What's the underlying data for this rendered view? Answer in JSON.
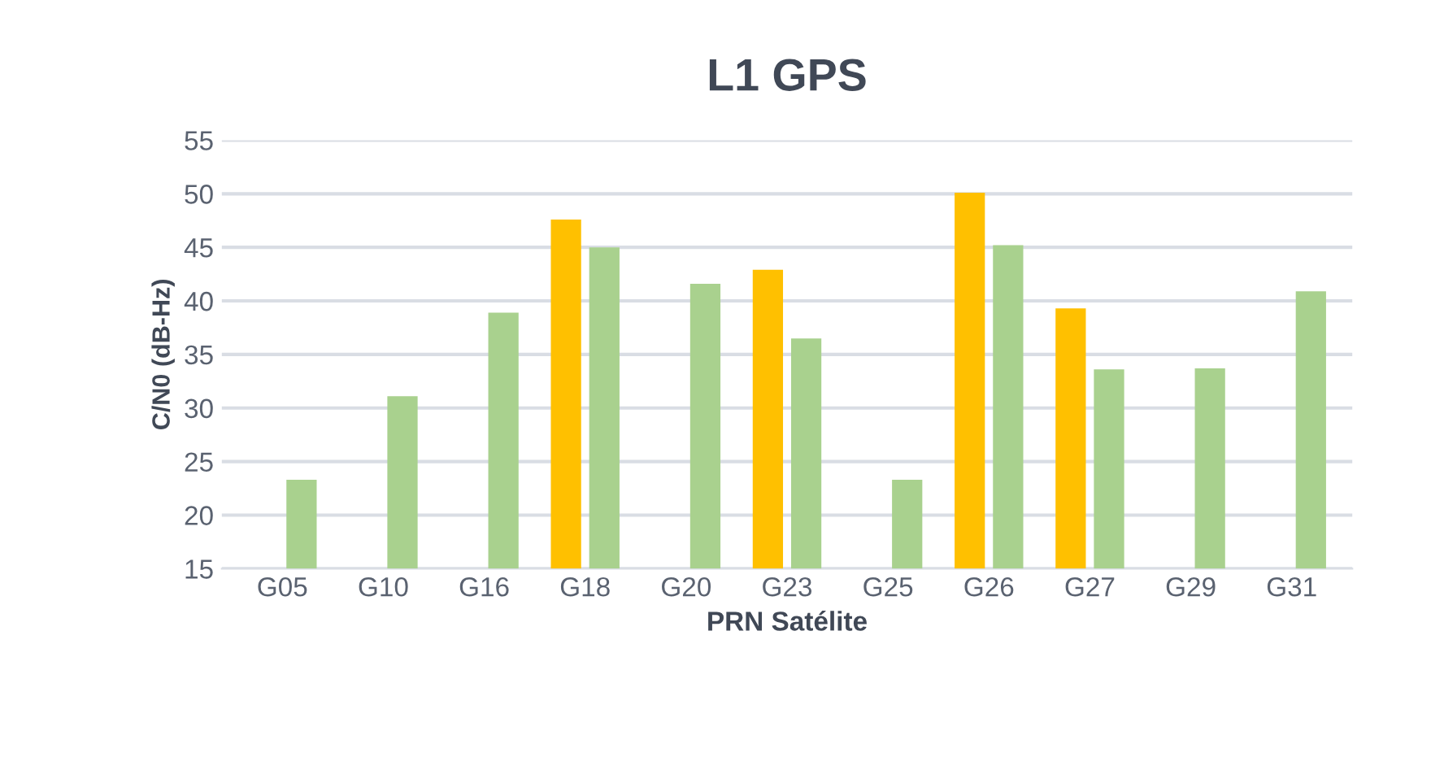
{
  "chart_data": {
    "type": "bar",
    "title": "L1 GPS",
    "xlabel": "PRN Satélite",
    "ylabel": "C/N0 (dB-Hz)",
    "categories": [
      "G05",
      "G10",
      "G16",
      "G18",
      "G20",
      "G23",
      "G25",
      "G26",
      "G27",
      "G29",
      "G31"
    ],
    "series": [
      {
        "color": "#ffc000",
        "values": [
          null,
          null,
          null,
          47.6,
          null,
          42.9,
          null,
          50.1,
          39.3,
          null,
          null
        ]
      },
      {
        "color": "#a9d18e",
        "values": [
          23.3,
          31.1,
          38.9,
          45.0,
          41.6,
          36.5,
          23.3,
          45.2,
          33.6,
          33.7,
          40.9
        ]
      }
    ],
    "ylim": [
      15,
      55
    ],
    "yticks": [
      15,
      20,
      25,
      30,
      35,
      40,
      45,
      50,
      55
    ],
    "grid": "y"
  }
}
